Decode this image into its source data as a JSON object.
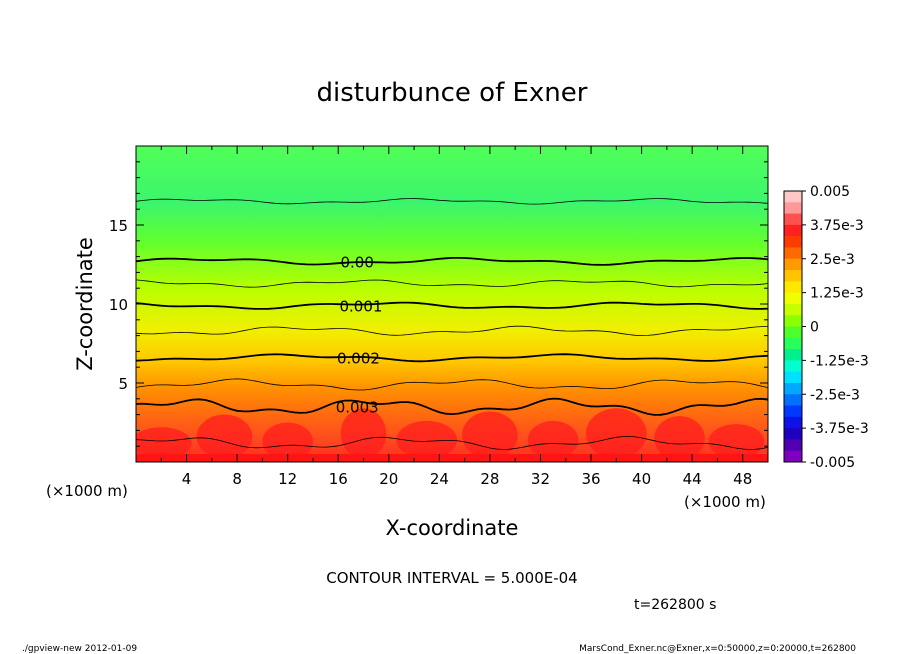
{
  "chart_data": {
    "type": "heatmap",
    "title": "disturbunce of Exner",
    "xlabel": "X-coordinate",
    "ylabel": "Z-coordinate",
    "x_unit_left": "(×1000 m)",
    "x_unit_right": "(×1000 m)",
    "xlim": [
      0,
      50
    ],
    "ylim": [
      0,
      20
    ],
    "x_ticks": [
      4,
      8,
      12,
      16,
      20,
      24,
      28,
      32,
      36,
      40,
      44,
      48
    ],
    "y_ticks": [
      5,
      10,
      15
    ],
    "colorbar": {
      "labels": [
        "0.005",
        "3.75e-3",
        "2.5e-3",
        "1.25e-3",
        "0",
        "-1.25e-3",
        "-2.5e-3",
        "-3.75e-3",
        "-0.005"
      ],
      "colors": [
        "#ffc8c8",
        "#ff9999",
        "#ff5050",
        "#ff2020",
        "#ff3c00",
        "#ff6a00",
        "#ff9a00",
        "#ffc400",
        "#ffe800",
        "#f0ff00",
        "#c8ff00",
        "#8cff00",
        "#4cff2a",
        "#28ff5a",
        "#00f090",
        "#00ffd0",
        "#00e0ff",
        "#00a8ff",
        "#0070ff",
        "#0038ff",
        "#1010e8",
        "#2000c0",
        "#5000b0",
        "#8000c0"
      ]
    },
    "contours": [
      {
        "z": 12.7,
        "label": "0.00",
        "label_x": 17.5
      },
      {
        "z": 9.9,
        "label": "0.001",
        "label_x": 17.8
      },
      {
        "z": 6.6,
        "label": "0.002",
        "label_x": 17.6
      },
      {
        "z": 3.5,
        "label": "0.003",
        "label_x": 17.5
      }
    ],
    "minor_contours": [
      16.5,
      11.3,
      8.3,
      4.9,
      1.2
    ],
    "contour_interval_text": "CONTOUR INTERVAL = 5.000E-04",
    "time_text": "t=262800 s"
  },
  "footer": {
    "left": "./gpview-new   2012-01-09",
    "right": "MarsCond_Exner.nc@Exner,x=0:50000,z=0:20000,t=262800"
  }
}
